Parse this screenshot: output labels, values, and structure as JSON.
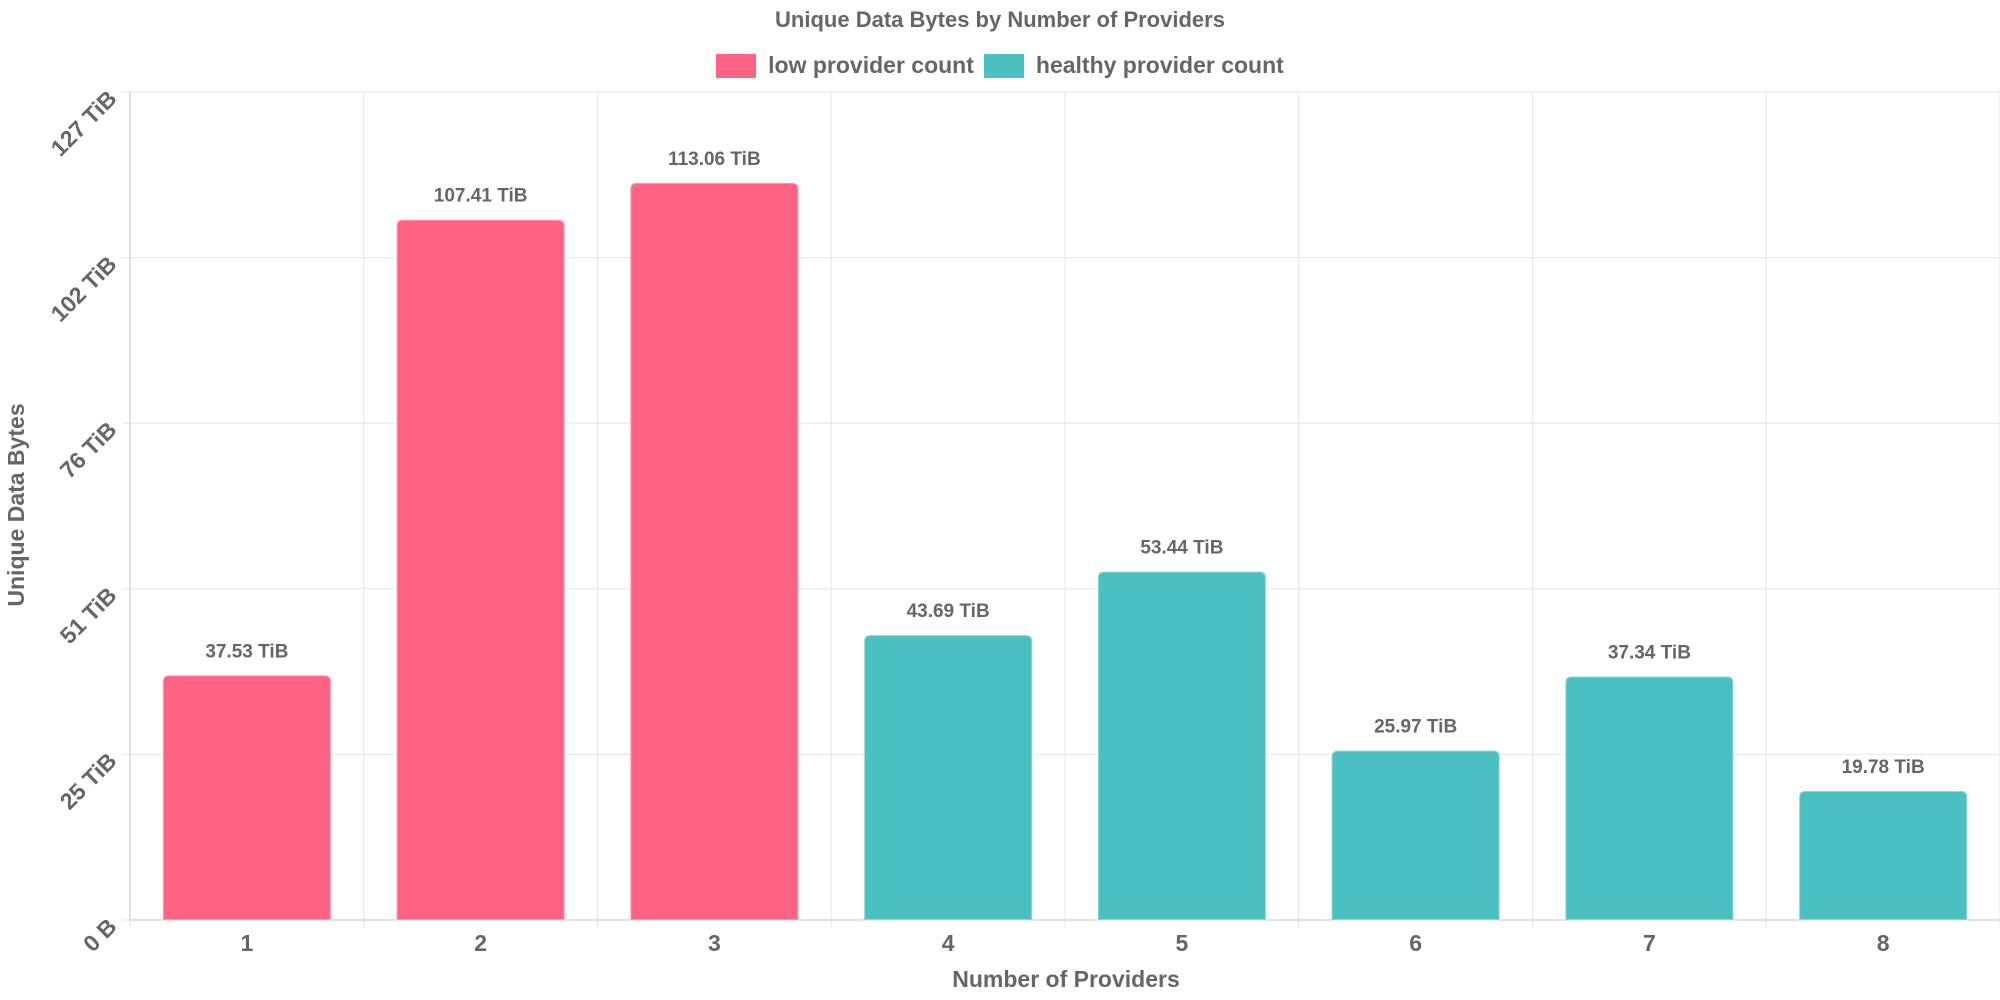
{
  "chart_data": {
    "type": "bar",
    "title": "Unique Data Bytes by Number of Providers",
    "xlabel": "Number of Providers",
    "ylabel": "Unique Data Bytes",
    "categories": [
      "1",
      "2",
      "3",
      "4",
      "5",
      "6",
      "7",
      "8"
    ],
    "values": [
      37.53,
      107.41,
      113.06,
      43.69,
      53.44,
      25.97,
      37.34,
      19.78
    ],
    "value_labels": [
      "37.53 TiB",
      "107.41 TiB",
      "113.06 TiB",
      "43.69 TiB",
      "53.44 TiB",
      "25.97 TiB",
      "37.34 TiB",
      "19.78 TiB"
    ],
    "series_of_bar": [
      "low",
      "low",
      "low",
      "healthy",
      "healthy",
      "healthy",
      "healthy",
      "healthy"
    ],
    "legend": [
      {
        "key": "low",
        "name": "low provider count",
        "color": "#ff6384"
      },
      {
        "key": "healthy",
        "name": "healthy provider count",
        "color": "#4bc0c0"
      }
    ],
    "y_unit": "TiB",
    "y_ticks": [
      0,
      25.4,
      50.8,
      76.2,
      101.6,
      127
    ],
    "y_tick_labels": [
      "0 B",
      "25 TiB",
      "51 TiB",
      "76 TiB",
      "102 TiB",
      "127 TiB"
    ],
    "ylim": [
      0,
      127
    ],
    "grid": true,
    "legend_position": "top"
  }
}
